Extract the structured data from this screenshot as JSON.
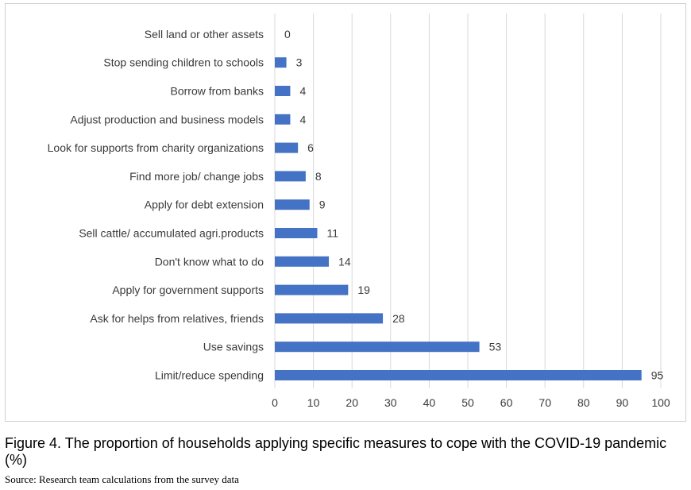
{
  "figure": {
    "caption": "Figure 4. The proportion of households applying specific measures to cope with the COVID-19 pandemic (%)",
    "source": "Source: Research team calculations from the survey data"
  },
  "colors": {
    "bar": "#4472c4",
    "grid": "#d9d9d9"
  },
  "chart_data": {
    "type": "bar",
    "orientation": "horizontal",
    "categories": [
      "Sell land or other assets",
      "Stop sending children to schools",
      "Borrow from banks",
      "Adjust production and business models",
      "Look for supports from charity organizations",
      "Find more job/ change jobs",
      "Apply for debt extension",
      "Sell cattle/ accumulated agri.products",
      "Don't know what to do",
      "Apply for government supports",
      "Ask for helps from relatives, friends",
      "Use savings",
      "Limit/reduce spending"
    ],
    "values": [
      0,
      3,
      4,
      4,
      6,
      8,
      9,
      11,
      14,
      19,
      28,
      53,
      95
    ],
    "xlim": [
      0,
      100
    ],
    "xticks": [
      0,
      10,
      20,
      30,
      40,
      50,
      60,
      70,
      80,
      90,
      100
    ],
    "grid": "vertical",
    "data_labels": true,
    "legend": "none"
  }
}
